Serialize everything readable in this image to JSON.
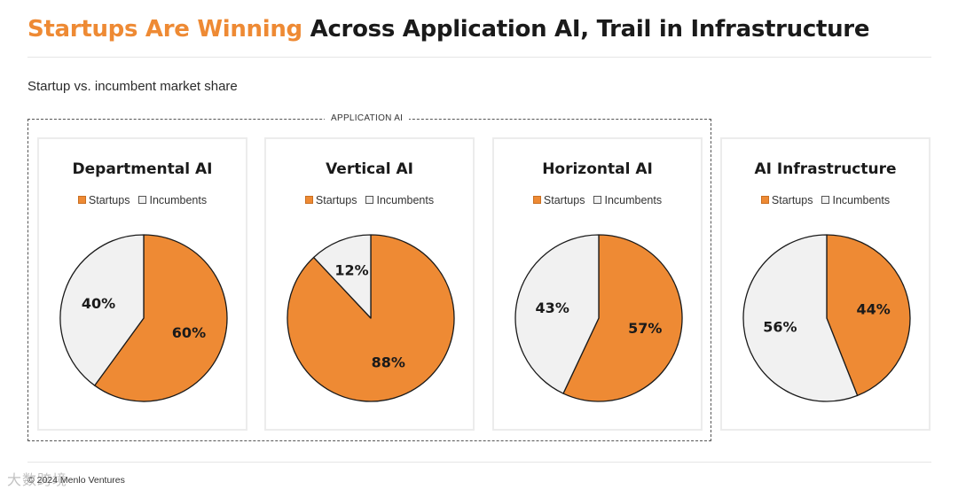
{
  "header": {
    "title_accent": "Startups Are Winning",
    "title_rest": " Across Application AI, Trail in Infrastructure",
    "subtitle": "Startup vs. incumbent market share"
  },
  "group": {
    "label": "APPLICATION AI"
  },
  "footer": {
    "copyright": "© 2024 Menlo Ventures"
  },
  "watermark": "大数跨境",
  "colors": {
    "startups": "#ee8a34",
    "incumbents": "#f1f1f1",
    "outline": "#1a1a1a"
  },
  "chart_data": [
    {
      "type": "pie",
      "title": "Departmental AI",
      "legend": [
        "Startups",
        "Incumbents"
      ],
      "slices": [
        {
          "name": "Startups",
          "value": 60,
          "label": "60%"
        },
        {
          "name": "Incumbents",
          "value": 40,
          "label": "40%"
        }
      ]
    },
    {
      "type": "pie",
      "title": "Vertical AI",
      "legend": [
        "Startups",
        "Incumbents"
      ],
      "slices": [
        {
          "name": "Startups",
          "value": 88,
          "label": "88%"
        },
        {
          "name": "Incumbents",
          "value": 12,
          "label": "12%"
        }
      ]
    },
    {
      "type": "pie",
      "title": "Horizontal AI",
      "legend": [
        "Startups",
        "Incumbents"
      ],
      "slices": [
        {
          "name": "Startups",
          "value": 57,
          "label": "57%"
        },
        {
          "name": "Incumbents",
          "value": 43,
          "label": "43%"
        }
      ]
    },
    {
      "type": "pie",
      "title": "AI Infrastructure",
      "legend": [
        "Startups",
        "Incumbents"
      ],
      "slices": [
        {
          "name": "Startups",
          "value": 44,
          "label": "44%"
        },
        {
          "name": "Incumbents",
          "value": 56,
          "label": "56%"
        }
      ]
    }
  ]
}
